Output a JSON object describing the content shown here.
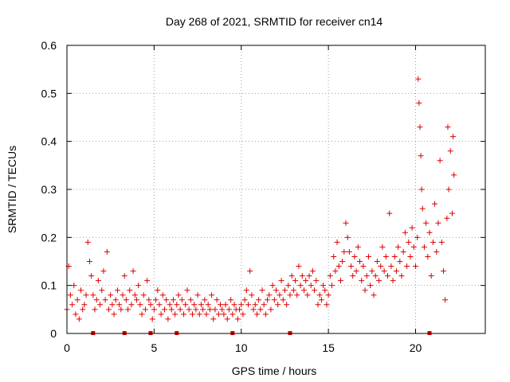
{
  "chart_data": {
    "type": "scatter",
    "title": "Day 268 of 2021, SRMTID for receiver cn14",
    "xlabel": "GPS time / hours",
    "ylabel": "SRMTID / TECUs",
    "xlim": [
      0,
      24
    ],
    "ylim": [
      0,
      0.6
    ],
    "x_ticks": [
      0,
      5,
      10,
      15,
      20
    ],
    "y_ticks": [
      0,
      0.1,
      0.2,
      0.3,
      0.4,
      0.5,
      0.6
    ],
    "x_tick_labels": [
      "0",
      "5",
      "10",
      "15",
      "20"
    ],
    "y_tick_labels": [
      "0",
      "0.1",
      "0.2",
      "0.3",
      "0.4",
      "0.5",
      "0.6"
    ],
    "grid": true,
    "marker": "+",
    "color": "#dd0000",
    "gap_markers_x": [
      1.5,
      3.3,
      4.8,
      6.3,
      9.5,
      12.8,
      20.8
    ],
    "series": [
      {
        "name": "SRMTID",
        "points": [
          [
            0.0,
            0.05
          ],
          [
            0.1,
            0.14
          ],
          [
            0.2,
            0.08
          ],
          [
            0.3,
            0.06
          ],
          [
            0.4,
            0.1
          ],
          [
            0.5,
            0.04
          ],
          [
            0.6,
            0.07
          ],
          [
            0.7,
            0.03
          ],
          [
            0.8,
            0.09
          ],
          [
            0.9,
            0.05
          ],
          [
            1.0,
            0.06
          ],
          [
            1.1,
            0.08
          ],
          [
            1.2,
            0.19
          ],
          [
            1.3,
            0.15
          ],
          [
            1.4,
            0.12
          ],
          [
            1.5,
            0.08
          ],
          [
            1.6,
            0.05
          ],
          [
            1.7,
            0.07
          ],
          [
            1.8,
            0.11
          ],
          [
            1.9,
            0.06
          ],
          [
            2.0,
            0.09
          ],
          [
            2.1,
            0.13
          ],
          [
            2.2,
            0.07
          ],
          [
            2.3,
            0.17
          ],
          [
            2.4,
            0.05
          ],
          [
            2.5,
            0.08
          ],
          [
            2.6,
            0.06
          ],
          [
            2.7,
            0.04
          ],
          [
            2.8,
            0.07
          ],
          [
            2.9,
            0.09
          ],
          [
            3.0,
            0.06
          ],
          [
            3.1,
            0.05
          ],
          [
            3.2,
            0.08
          ],
          [
            3.3,
            0.12
          ],
          [
            3.4,
            0.07
          ],
          [
            3.5,
            0.05
          ],
          [
            3.6,
            0.09
          ],
          [
            3.7,
            0.06
          ],
          [
            3.8,
            0.13
          ],
          [
            3.9,
            0.08
          ],
          [
            4.0,
            0.07
          ],
          [
            4.1,
            0.1
          ],
          [
            4.2,
            0.06
          ],
          [
            4.3,
            0.04
          ],
          [
            4.4,
            0.08
          ],
          [
            4.5,
            0.05
          ],
          [
            4.6,
            0.11
          ],
          [
            4.7,
            0.07
          ],
          [
            4.8,
            0.06
          ],
          [
            4.9,
            0.03
          ],
          [
            5.0,
            0.05
          ],
          [
            5.1,
            0.07
          ],
          [
            5.2,
            0.09
          ],
          [
            5.3,
            0.06
          ],
          [
            5.4,
            0.04
          ],
          [
            5.5,
            0.08
          ],
          [
            5.6,
            0.05
          ],
          [
            5.7,
            0.07
          ],
          [
            5.8,
            0.03
          ],
          [
            5.9,
            0.06
          ],
          [
            6.0,
            0.05
          ],
          [
            6.1,
            0.07
          ],
          [
            6.2,
            0.04
          ],
          [
            6.3,
            0.06
          ],
          [
            6.4,
            0.08
          ],
          [
            6.5,
            0.05
          ],
          [
            6.6,
            0.07
          ],
          [
            6.7,
            0.04
          ],
          [
            6.8,
            0.06
          ],
          [
            6.9,
            0.09
          ],
          [
            7.0,
            0.05
          ],
          [
            7.1,
            0.07
          ],
          [
            7.2,
            0.04
          ],
          [
            7.3,
            0.06
          ],
          [
            7.4,
            0.05
          ],
          [
            7.5,
            0.08
          ],
          [
            7.6,
            0.04
          ],
          [
            7.7,
            0.06
          ],
          [
            7.8,
            0.05
          ],
          [
            7.9,
            0.07
          ],
          [
            8.0,
            0.04
          ],
          [
            8.1,
            0.06
          ],
          [
            8.2,
            0.05
          ],
          [
            8.3,
            0.08
          ],
          [
            8.4,
            0.03
          ],
          [
            8.5,
            0.05
          ],
          [
            8.6,
            0.07
          ],
          [
            8.7,
            0.04
          ],
          [
            8.8,
            0.06
          ],
          [
            8.9,
            0.05
          ],
          [
            9.0,
            0.04
          ],
          [
            9.1,
            0.06
          ],
          [
            9.2,
            0.03
          ],
          [
            9.3,
            0.05
          ],
          [
            9.4,
            0.07
          ],
          [
            9.5,
            0.04
          ],
          [
            9.6,
            0.06
          ],
          [
            9.7,
            0.05
          ],
          [
            9.8,
            0.03
          ],
          [
            9.9,
            0.05
          ],
          [
            10.0,
            0.06
          ],
          [
            10.1,
            0.04
          ],
          [
            10.2,
            0.07
          ],
          [
            10.3,
            0.09
          ],
          [
            10.4,
            0.06
          ],
          [
            10.5,
            0.13
          ],
          [
            10.6,
            0.08
          ],
          [
            10.7,
            0.05
          ],
          [
            10.8,
            0.06
          ],
          [
            10.9,
            0.04
          ],
          [
            11.0,
            0.07
          ],
          [
            11.1,
            0.05
          ],
          [
            11.2,
            0.09
          ],
          [
            11.3,
            0.06
          ],
          [
            11.4,
            0.04
          ],
          [
            11.5,
            0.07
          ],
          [
            11.6,
            0.08
          ],
          [
            11.7,
            0.05
          ],
          [
            11.8,
            0.1
          ],
          [
            11.9,
            0.07
          ],
          [
            12.0,
            0.09
          ],
          [
            12.1,
            0.06
          ],
          [
            12.2,
            0.08
          ],
          [
            12.3,
            0.11
          ],
          [
            12.4,
            0.07
          ],
          [
            12.5,
            0.09
          ],
          [
            12.6,
            0.06
          ],
          [
            12.7,
            0.1
          ],
          [
            12.8,
            0.08
          ],
          [
            12.9,
            0.12
          ],
          [
            13.0,
            0.09
          ],
          [
            13.1,
            0.11
          ],
          [
            13.2,
            0.08
          ],
          [
            13.3,
            0.14
          ],
          [
            13.4,
            0.1
          ],
          [
            13.5,
            0.12
          ],
          [
            13.6,
            0.09
          ],
          [
            13.7,
            0.11
          ],
          [
            13.8,
            0.08
          ],
          [
            13.9,
            0.12
          ],
          [
            14.0,
            0.1
          ],
          [
            14.1,
            0.13
          ],
          [
            14.2,
            0.09
          ],
          [
            14.3,
            0.11
          ],
          [
            14.4,
            0.06
          ],
          [
            14.5,
            0.08
          ],
          [
            14.6,
            0.07
          ],
          [
            14.7,
            0.1
          ],
          [
            14.8,
            0.09
          ],
          [
            14.9,
            0.06
          ],
          [
            15.0,
            0.08
          ],
          [
            15.1,
            0.12
          ],
          [
            15.2,
            0.1
          ],
          [
            15.3,
            0.16
          ],
          [
            15.4,
            0.13
          ],
          [
            15.5,
            0.19
          ],
          [
            15.6,
            0.14
          ],
          [
            15.7,
            0.11
          ],
          [
            15.8,
            0.15
          ],
          [
            15.9,
            0.17
          ],
          [
            16.0,
            0.23
          ],
          [
            16.1,
            0.2
          ],
          [
            16.2,
            0.17
          ],
          [
            16.3,
            0.14
          ],
          [
            16.4,
            0.12
          ],
          [
            16.5,
            0.16
          ],
          [
            16.6,
            0.13
          ],
          [
            16.7,
            0.18
          ],
          [
            16.8,
            0.15
          ],
          [
            16.9,
            0.11
          ],
          [
            17.0,
            0.14
          ],
          [
            17.1,
            0.09
          ],
          [
            17.2,
            0.12
          ],
          [
            17.3,
            0.16
          ],
          [
            17.4,
            0.1
          ],
          [
            17.5,
            0.13
          ],
          [
            17.6,
            0.08
          ],
          [
            17.7,
            0.12
          ],
          [
            17.8,
            0.15
          ],
          [
            17.9,
            0.11
          ],
          [
            18.0,
            0.14
          ],
          [
            18.1,
            0.18
          ],
          [
            18.2,
            0.13
          ],
          [
            18.3,
            0.16
          ],
          [
            18.4,
            0.12
          ],
          [
            18.5,
            0.25
          ],
          [
            18.6,
            0.14
          ],
          [
            18.7,
            0.11
          ],
          [
            18.8,
            0.16
          ],
          [
            18.9,
            0.13
          ],
          [
            19.0,
            0.18
          ],
          [
            19.1,
            0.15
          ],
          [
            19.2,
            0.12
          ],
          [
            19.3,
            0.17
          ],
          [
            19.4,
            0.21
          ],
          [
            19.5,
            0.14
          ],
          [
            19.6,
            0.19
          ],
          [
            19.7,
            0.16
          ],
          [
            19.8,
            0.22
          ],
          [
            19.9,
            0.18
          ],
          [
            20.0,
            0.14
          ],
          [
            20.1,
            0.2
          ],
          [
            20.15,
            0.53
          ],
          [
            20.2,
            0.48
          ],
          [
            20.25,
            0.43
          ],
          [
            20.3,
            0.37
          ],
          [
            20.35,
            0.3
          ],
          [
            20.4,
            0.26
          ],
          [
            20.5,
            0.18
          ],
          [
            20.6,
            0.23
          ],
          [
            20.7,
            0.16
          ],
          [
            20.8,
            0.21
          ],
          [
            20.9,
            0.12
          ],
          [
            21.0,
            0.19
          ],
          [
            21.1,
            0.27
          ],
          [
            21.2,
            0.17
          ],
          [
            21.3,
            0.23
          ],
          [
            21.4,
            0.36
          ],
          [
            21.5,
            0.19
          ],
          [
            21.6,
            0.13
          ],
          [
            21.7,
            0.07
          ],
          [
            21.8,
            0.24
          ],
          [
            21.85,
            0.43
          ],
          [
            21.9,
            0.3
          ],
          [
            22.0,
            0.38
          ],
          [
            22.1,
            0.25
          ],
          [
            22.15,
            0.41
          ],
          [
            22.2,
            0.33
          ]
        ]
      }
    ]
  }
}
